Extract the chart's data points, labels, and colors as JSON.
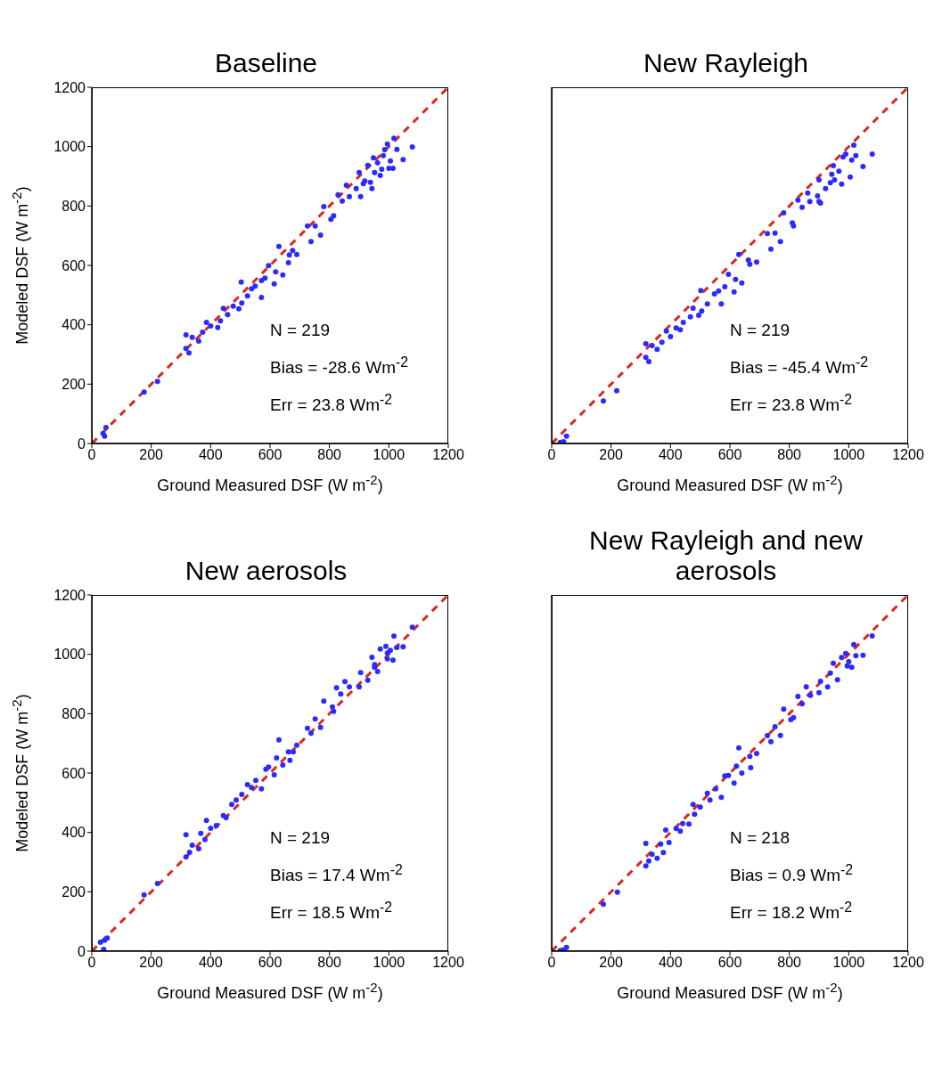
{
  "chart_data": [
    {
      "type": "scatter",
      "title": "Baseline",
      "xlabel": "Ground Measured DSF (W m$^{-2}$)",
      "ylabel": "Modeled DSF (W m$^{-2}$)",
      "xlim": [
        0,
        1200
      ],
      "ylim": [
        0,
        1200
      ],
      "xticks": [
        0,
        200,
        400,
        600,
        800,
        1000,
        1200
      ],
      "yticks": [
        0,
        200,
        400,
        600,
        800,
        1000,
        1200
      ],
      "marker": "circle",
      "annotations": [
        "N = 219",
        "Bias = -28.6 Wm$^{-2}$",
        "Err = 23.8 Wm$^{-2}$"
      ],
      "series": [
        {
          "color": "#2b2bff",
          "x": [
            38,
            43,
            48,
            176,
            221,
            317,
            327,
            317,
            338,
            360,
            373,
            386,
            400,
            424,
            433,
            443,
            457,
            476,
            495,
            503,
            505,
            524,
            538,
            550,
            571,
            571,
            583,
            595,
            614,
            619,
            630,
            643,
            662,
            665,
            676,
            690,
            726,
            752,
            738,
            770,
            781,
            805,
            814,
            829,
            843,
            857,
            867,
            890,
            905,
            900,
            919,
            929,
            943,
            948,
            952,
            962,
            971,
            976,
            986,
            1000,
            1005,
            1017,
            1027,
            1014,
            1048,
            1079,
            995,
            981,
            914,
            938
          ],
          "values": [
            34,
            25,
            54,
            173,
            209,
            366,
            305,
            320,
            358,
            345,
            375,
            408,
            396,
            391,
            413,
            455,
            434,
            463,
            454,
            544,
            473,
            497,
            521,
            530,
            492,
            549,
            557,
            599,
            538,
            578,
            664,
            568,
            609,
            635,
            650,
            637,
            733,
            733,
            680,
            702,
            798,
            755,
            767,
            838,
            817,
            870,
            832,
            859,
            832,
            913,
            884,
            937,
            859,
            962,
            913,
            946,
            903,
            924,
            990,
            927,
            952,
            1028,
            991,
            927,
            956,
            999,
            1009,
            970,
            875,
            880
          ]
        },
        {
          "type": "line",
          "color": "#d42a1f",
          "line_style": "dashed",
          "marker": "none",
          "x": [
            0,
            1200
          ],
          "values": [
            0,
            1200
          ]
        }
      ]
    },
    {
      "type": "scatter",
      "title": "New Rayleigh",
      "xlabel": "Ground Measured DSF (W m$^{-2}$)",
      "xlim": [
        0,
        1200
      ],
      "ylim": [
        0,
        1200
      ],
      "xticks": [
        0,
        200,
        400,
        600,
        800,
        1000,
        1200
      ],
      "yticks": [
        0,
        200,
        400,
        600,
        800,
        1000,
        1200
      ],
      "tick_labels": "x",
      "marker": "circle",
      "annotations": [
        "N = 219",
        "Bias = -45.4 Wm$^{-2}$",
        "Err = 23.8 Wm$^{-2}$"
      ],
      "series": [
        {
          "color": "#2b2bff",
          "x": [
            29,
            40,
            50,
            174,
            219,
            317,
            317,
            327,
            338,
            355,
            371,
            386,
            400,
            419,
            433,
            443,
            467,
            476,
            495,
            502,
            505,
            524,
            548,
            562,
            571,
            583,
            595,
            614,
            619,
            630,
            640,
            662,
            667,
            690,
            726,
            752,
            738,
            770,
            781,
            810,
            814,
            829,
            843,
            862,
            869,
            895,
            905,
            900,
            922,
            938,
            948,
            952,
            967,
            976,
            981,
            990,
            1005,
            1010,
            1017,
            1024,
            1048,
            1079,
            900,
            943
          ],
          "values": [
            4,
            6,
            25,
            143,
            178,
            336,
            290,
            276,
            330,
            317,
            341,
            379,
            360,
            389,
            383,
            408,
            427,
            456,
            432,
            515,
            446,
            470,
            504,
            514,
            470,
            528,
            570,
            511,
            553,
            637,
            541,
            618,
            604,
            611,
            707,
            709,
            655,
            680,
            777,
            743,
            733,
            820,
            796,
            844,
            815,
            834,
            810,
            888,
            859,
            878,
            936,
            888,
            917,
            874,
            965,
            975,
            898,
            955,
            1005,
            970,
            933,
            975,
            815,
            907
          ]
        },
        {
          "type": "line",
          "color": "#d42a1f",
          "line_style": "dashed",
          "marker": "none",
          "x": [
            0,
            1200
          ],
          "values": [
            0,
            1200
          ]
        }
      ]
    },
    {
      "type": "scatter",
      "title": "New aerosols",
      "xlabel": "Ground Measured DSF (W m$^{-2}$)",
      "ylabel": "Modeled DSF (W m$^{-2}$)",
      "xlim": [
        0,
        1200
      ],
      "ylim": [
        0,
        1200
      ],
      "xticks": [
        0,
        200,
        400,
        600,
        800,
        1000,
        1200
      ],
      "yticks": [
        0,
        200,
        400,
        600,
        800,
        1000,
        1200
      ],
      "marker": "circle",
      "annotations": [
        "N = 219",
        "Bias = 17.4 Wm$^{-2}$",
        "Err = 18.5 Wm$^{-2}$"
      ],
      "series": [
        {
          "color": "#2b2bff",
          "x": [
            29,
            40,
            52,
            43,
            176,
            221,
            317,
            317,
            329,
            338,
            360,
            367,
            381,
            386,
            400,
            419,
            443,
            452,
            471,
            486,
            505,
            524,
            538,
            552,
            571,
            586,
            595,
            614,
            622,
            630,
            643,
            662,
            667,
            678,
            690,
            726,
            752,
            738,
            770,
            781,
            810,
            814,
            824,
            838,
            852,
            867,
            900,
            905,
            929,
            943,
            952,
            962,
            971,
            990,
            995,
            1005,
            1014,
            1017,
            1027,
            1048,
            1079,
            995,
            952
          ],
          "values": [
            30,
            6,
            44,
            37,
            190,
            228,
            392,
            317,
            333,
            357,
            345,
            397,
            376,
            440,
            414,
            423,
            457,
            450,
            494,
            509,
            528,
            561,
            551,
            575,
            547,
            613,
            620,
            594,
            651,
            712,
            627,
            671,
            643,
            671,
            694,
            751,
            782,
            734,
            754,
            842,
            823,
            808,
            887,
            866,
            908,
            890,
            890,
            938,
            913,
            990,
            956,
            942,
            1018,
            1027,
            985,
            1013,
            980,
            1061,
            1023,
            1025,
            1091,
            1004,
            965
          ]
        },
        {
          "type": "line",
          "color": "#d42a1f",
          "line_style": "dashed",
          "marker": "none",
          "x": [
            0,
            1200
          ],
          "values": [
            0,
            1200
          ]
        }
      ]
    },
    {
      "type": "scatter",
      "title": "New Rayleigh and new aerosols",
      "xlabel": "Ground Measured DSF (W m$^{-2}$)",
      "xlim": [
        0,
        1200
      ],
      "ylim": [
        0,
        1200
      ],
      "xticks": [
        0,
        200,
        400,
        600,
        800,
        1000,
        1200
      ],
      "yticks": [
        0,
        200,
        400,
        600,
        800,
        1000,
        1200
      ],
      "tick_labels": "x",
      "marker": "circle",
      "annotations": [
        "N = 218",
        "Bias = 0.9 Wm$^{-2}$",
        "Err = 18.2 Wm$^{-2}$"
      ],
      "series": [
        {
          "color": "#2b2bff",
          "x": [
            29,
            40,
            50,
            174,
            221,
            317,
            317,
            327,
            338,
            355,
            367,
            376,
            384,
            395,
            419,
            433,
            441,
            462,
            476,
            481,
            500,
            524,
            533,
            552,
            571,
            583,
            595,
            614,
            622,
            630,
            640,
            667,
            670,
            690,
            726,
            738,
            752,
            770,
            781,
            805,
            814,
            829,
            843,
            857,
            871,
            900,
            905,
            929,
            938,
            948,
            962,
            976,
            990,
            1000,
            1010,
            1017,
            1024,
            1048,
            1079,
            995
          ],
          "values": [
            2,
            4,
            13,
            158,
            199,
            363,
            287,
            304,
            326,
            313,
            361,
            332,
            408,
            366,
            413,
            404,
            430,
            428,
            494,
            461,
            485,
            532,
            509,
            547,
            518,
            590,
            592,
            566,
            623,
            685,
            600,
            656,
            618,
            666,
            726,
            706,
            756,
            727,
            815,
            780,
            787,
            858,
            833,
            890,
            862,
            871,
            909,
            890,
            937,
            970,
            914,
            989,
            1003,
            975,
            956,
            1033,
            995,
            997,
            1062,
            961
          ]
        },
        {
          "type": "line",
          "color": "#d42a1f",
          "line_style": "dashed",
          "marker": "none",
          "x": [
            0,
            1200
          ],
          "values": [
            0,
            1200
          ]
        }
      ]
    }
  ]
}
